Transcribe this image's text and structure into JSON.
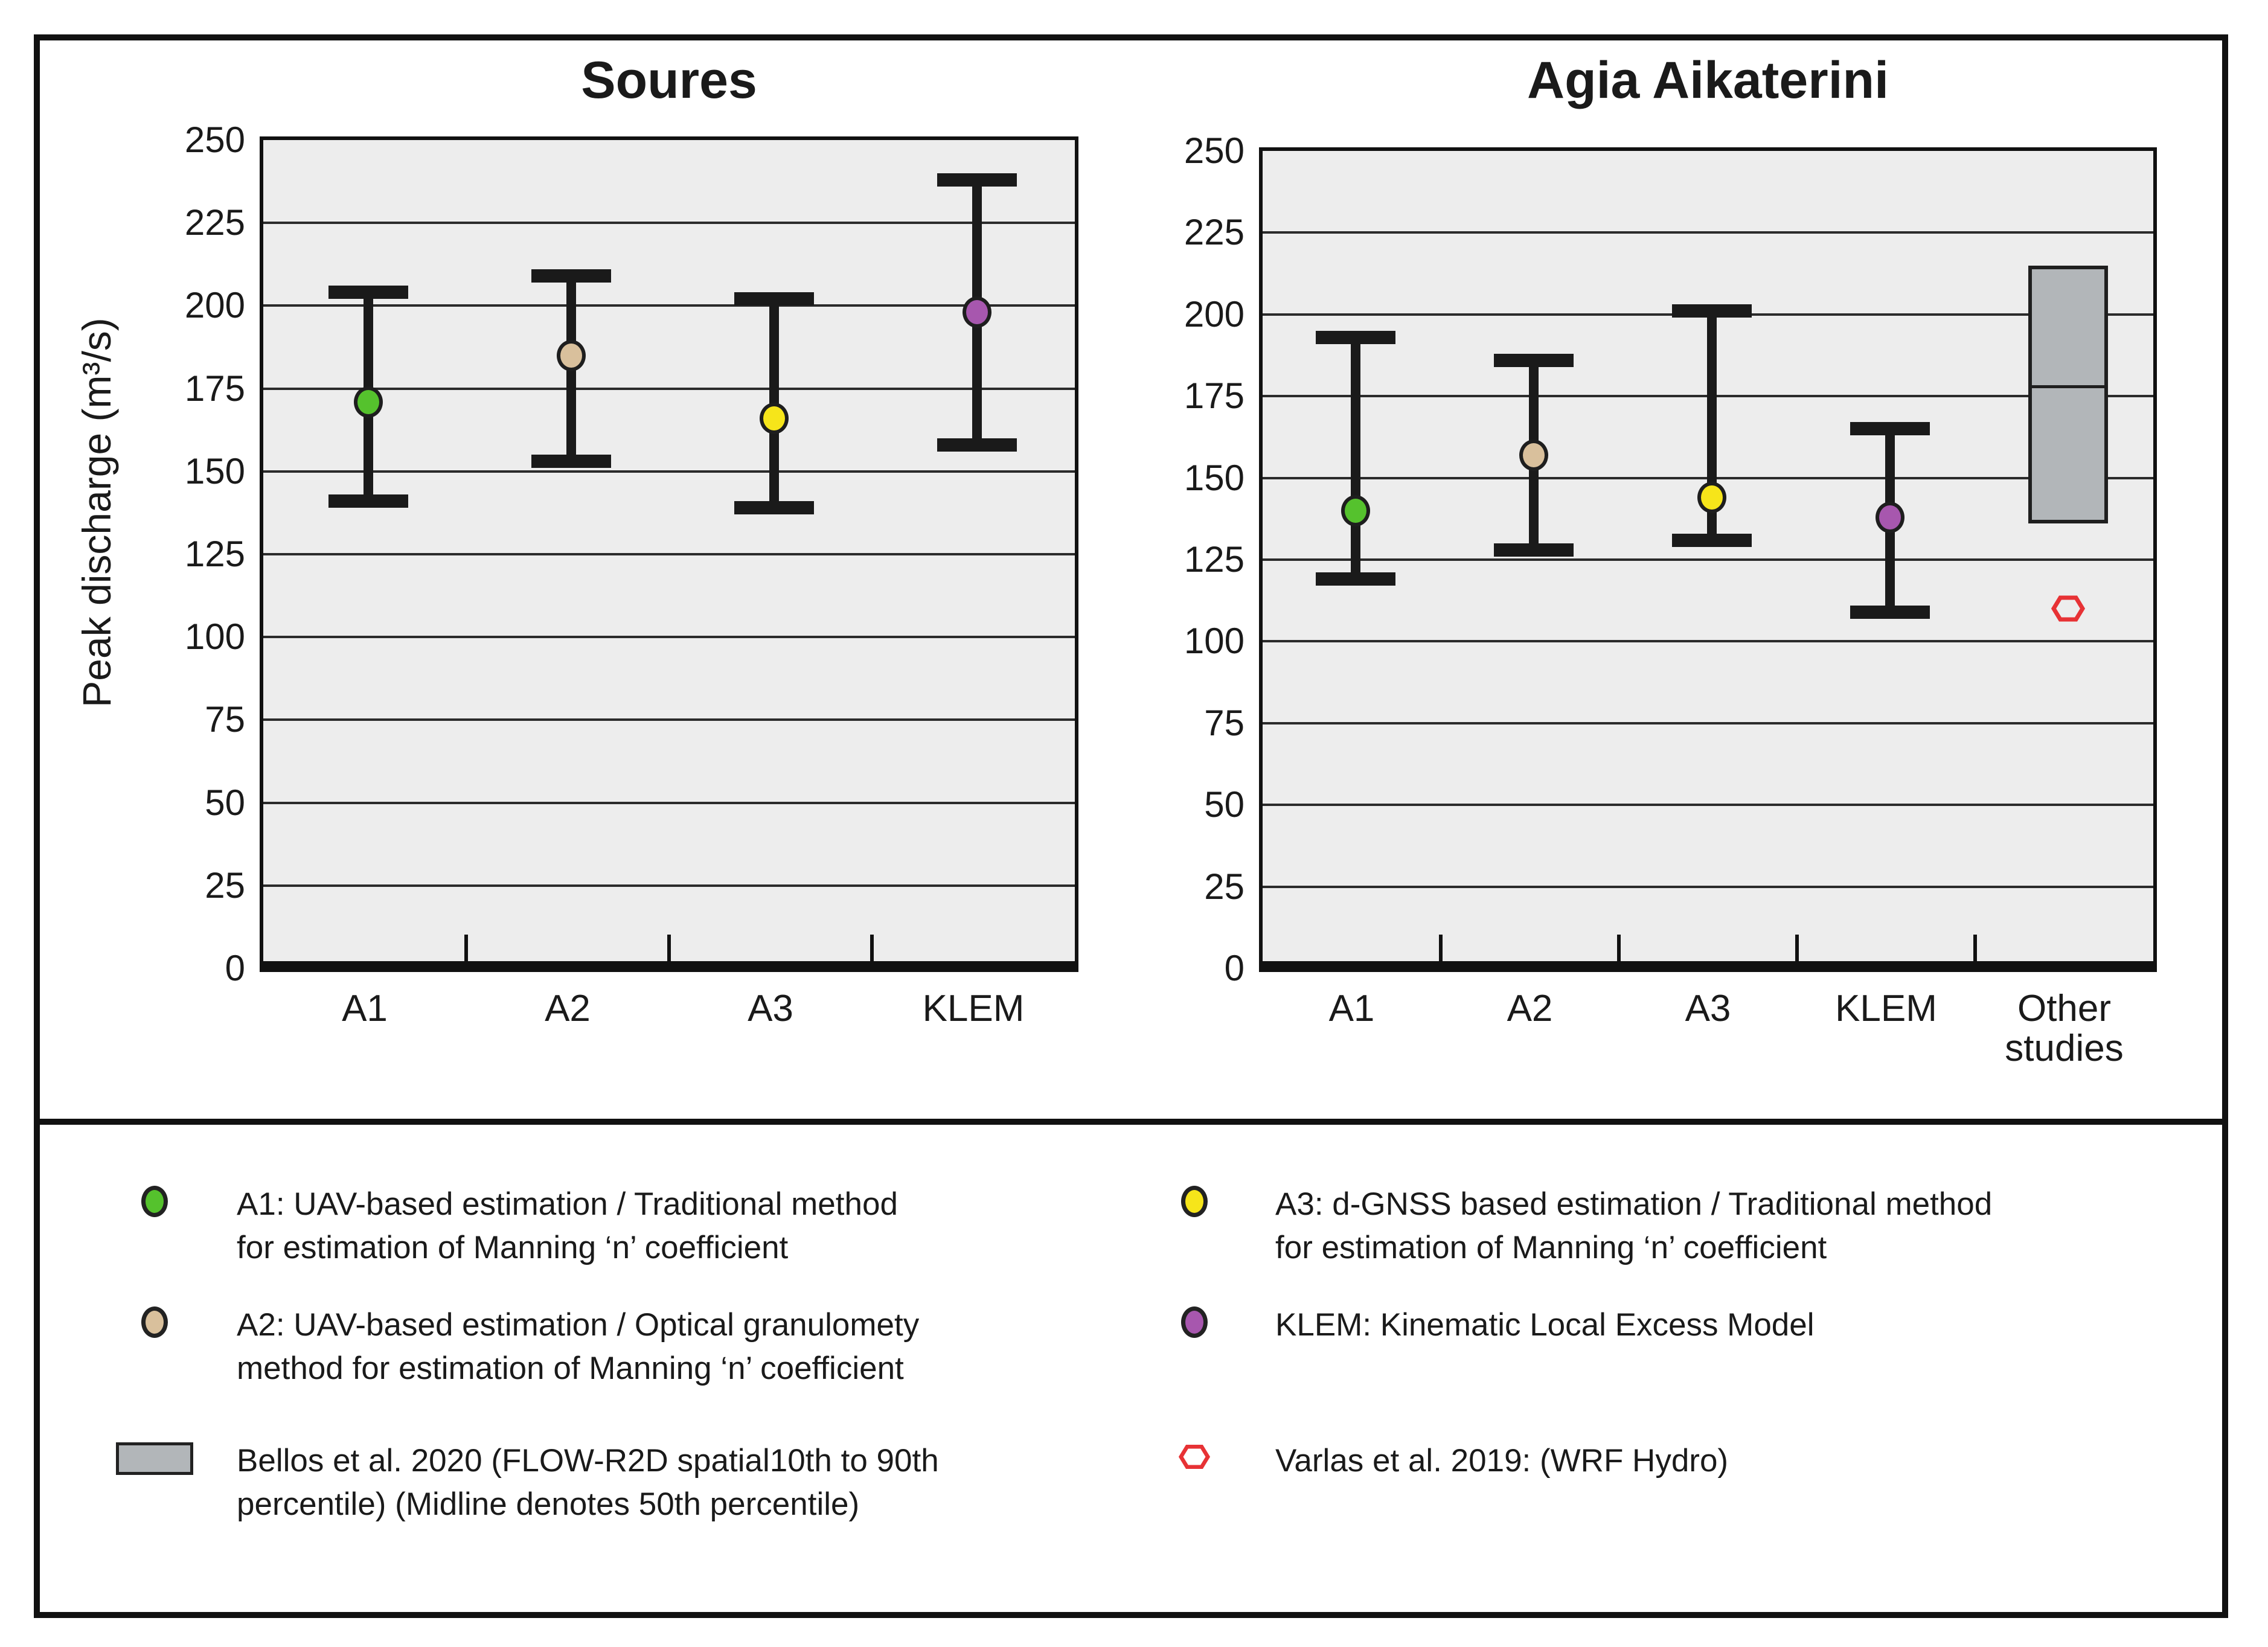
{
  "ylabel": "Peak discharge (m³/s)",
  "chart_data": [
    {
      "type": "errorbar",
      "title": "Soures",
      "categories": [
        "A1",
        "A2",
        "A3",
        "KLEM"
      ],
      "ylim": [
        0,
        250
      ],
      "yticks": [
        250,
        225,
        200,
        175,
        150,
        125,
        100,
        75,
        50,
        25,
        0
      ],
      "grid": true,
      "series": [
        {
          "category": "A1",
          "mid": 171,
          "lo": 141,
          "hi": 204,
          "color": "#55c22d"
        },
        {
          "category": "A2",
          "mid": 185,
          "lo": 153,
          "hi": 209,
          "color": "#d9c09c"
        },
        {
          "category": "A3",
          "mid": 166,
          "lo": 139,
          "hi": 202,
          "color": "#f6e51a"
        },
        {
          "category": "KLEM",
          "mid": 198,
          "lo": 158,
          "hi": 238,
          "color": "#a757ae"
        }
      ]
    },
    {
      "type": "errorbar",
      "title": "Agia Aikaterini",
      "categories": [
        "A1",
        "A2",
        "A3",
        "KLEM",
        "Other studies"
      ],
      "ylim": [
        0,
        250
      ],
      "yticks": [
        250,
        225,
        200,
        175,
        150,
        125,
        100,
        75,
        50,
        25,
        0
      ],
      "grid": true,
      "series": [
        {
          "category": "A1",
          "mid": 140,
          "lo": 119,
          "hi": 193,
          "color": "#55c22d"
        },
        {
          "category": "A2",
          "mid": 157,
          "lo": 128,
          "hi": 186,
          "color": "#d9c09c"
        },
        {
          "category": "A3",
          "mid": 144,
          "lo": 131,
          "hi": 201,
          "color": "#f6e51a"
        },
        {
          "category": "KLEM",
          "mid": 138,
          "lo": 109,
          "hi": 165,
          "color": "#a757ae"
        }
      ],
      "box": {
        "category": "Other studies",
        "p10": 136,
        "p50": 178,
        "p90": 215,
        "fill": "#b2b6b9"
      },
      "point": {
        "category": "Other studies",
        "value": 110,
        "marker": "hexagon-outline",
        "color": "#e73235"
      }
    }
  ],
  "legend": {
    "columns": [
      [
        {
          "marker": "circle",
          "color": "#55c22d",
          "lines": [
            "A1: UAV-based estimation / Traditional method",
            "for estimation of Manning ‘n’ coefficient"
          ]
        },
        {
          "marker": "circle",
          "color": "#d9c09c",
          "lines": [
            "A2: UAV-based estimation / Optical granulomety",
            "method for estimation of Manning ‘n’ coefficient"
          ]
        },
        {
          "marker": "box",
          "color": "#b2b6b9",
          "lines": [
            "Bellos et al. 2020 (FLOW-R2D spatial10th to 90th",
            "percentile) (Midline denotes 50th percentile)"
          ]
        }
      ],
      [
        {
          "marker": "circle",
          "color": "#f6e51a",
          "lines": [
            "A3: d-GNSS based estimation / Traditional method",
            "for estimation of Manning ‘n’ coefficient"
          ]
        },
        {
          "marker": "circle",
          "color": "#a757ae",
          "lines": [
            "KLEM: Kinematic Local Excess Model"
          ]
        },
        {
          "marker": "hexagon",
          "color": "#e73235",
          "lines": [
            "Varlas et al. 2019: (WRF Hydro)"
          ]
        }
      ]
    ]
  }
}
